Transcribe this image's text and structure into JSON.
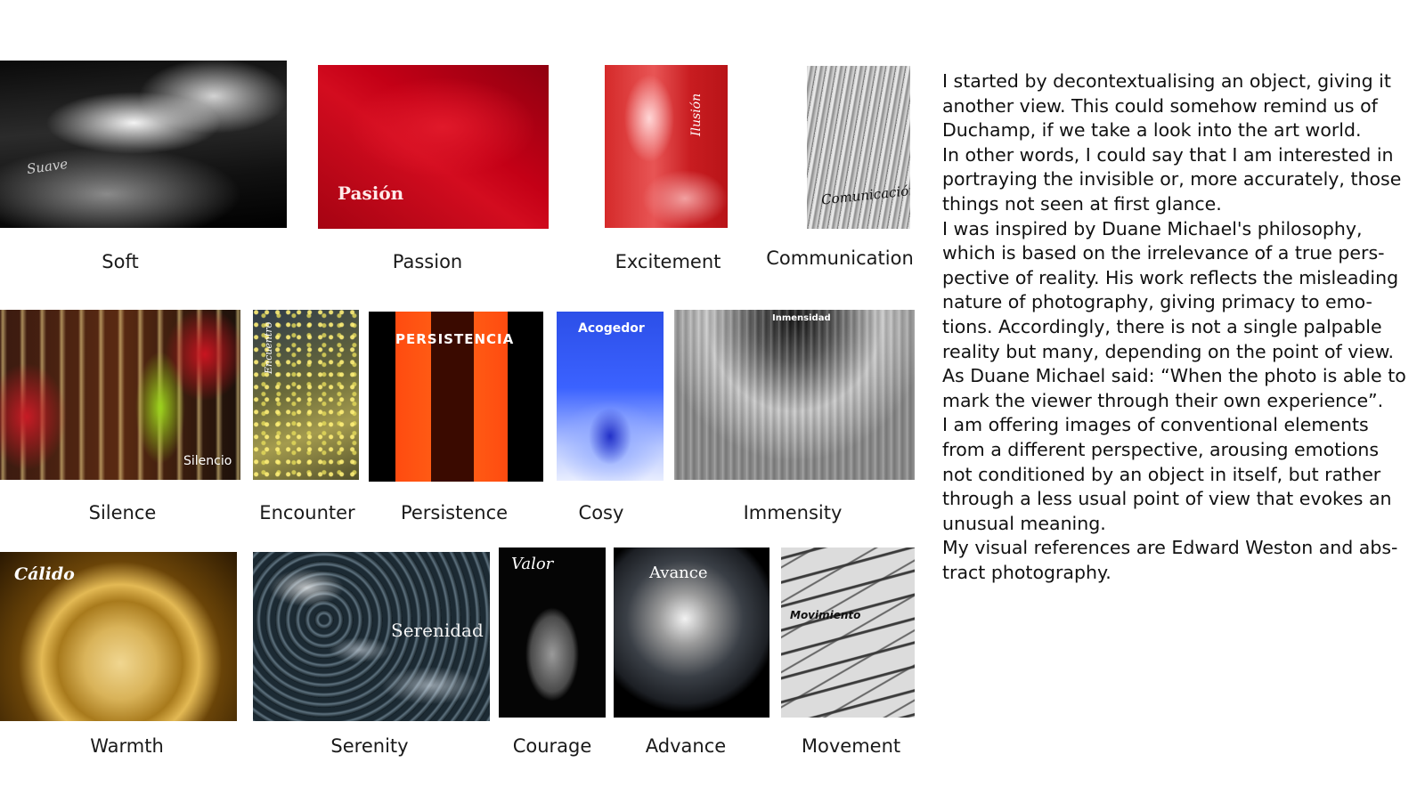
{
  "photos": [
    {
      "key": "soft",
      "title": "Suave",
      "caption": "Soft"
    },
    {
      "key": "passion",
      "title": "Pasión",
      "caption": "Passion"
    },
    {
      "key": "excitement",
      "title": "Ilusión",
      "caption": "Excitement"
    },
    {
      "key": "communication",
      "title": "Comunicación",
      "caption": "Communication"
    },
    {
      "key": "silence",
      "title": "Silencio",
      "caption": "Silence"
    },
    {
      "key": "encounter",
      "title": "Encuentro",
      "caption": "Encounter"
    },
    {
      "key": "persistence",
      "title": "PERSISTENCIA",
      "caption": "Persistence"
    },
    {
      "key": "cosy",
      "title": "Acogedor",
      "caption": "Cosy"
    },
    {
      "key": "immensity",
      "title": "Inmensidad",
      "caption": "Immensity"
    },
    {
      "key": "warmth",
      "title": "Cálido",
      "caption": "Warmth"
    },
    {
      "key": "serenity",
      "title": "Serenidad",
      "caption": "Serenity"
    },
    {
      "key": "courage",
      "title": "Valor",
      "caption": "Courage"
    },
    {
      "key": "advance",
      "title": "Avance",
      "caption": "Advance"
    },
    {
      "key": "movement",
      "title": "Movimiento",
      "caption": "Movement"
    }
  ],
  "essay": {
    "lines": [
      "I started by decontextualising an object, giving it",
      "another view. This could somehow remind us of",
      "Duchamp, if we take a look into the art world.",
      "In other words, I could say that I am interested in",
      "portraying the invisible or, more accurately, those",
      "things not seen at first glance.",
      "I was inspired by Duane Michael's philosophy,",
      "which is based on the irrelevance of a true pers-",
      "pective of reality. His work reflects the misleading",
      "nature of photography, giving primacy to emo-",
      "tions. Accordingly, there is not a single palpable",
      "reality but many, depending on the point of view.",
      "As Duane Michael said: “When the photo is able to",
      "mark the viewer through their own experience”.",
      "I am offering images of conventional elements",
      "from a different perspective, arousing emotions",
      "not conditioned by an object in itself, but rather",
      "through a less usual point of view that evokes an",
      "unusual meaning.",
      "My visual references are Edward Weston and abs-",
      "tract photography."
    ]
  }
}
